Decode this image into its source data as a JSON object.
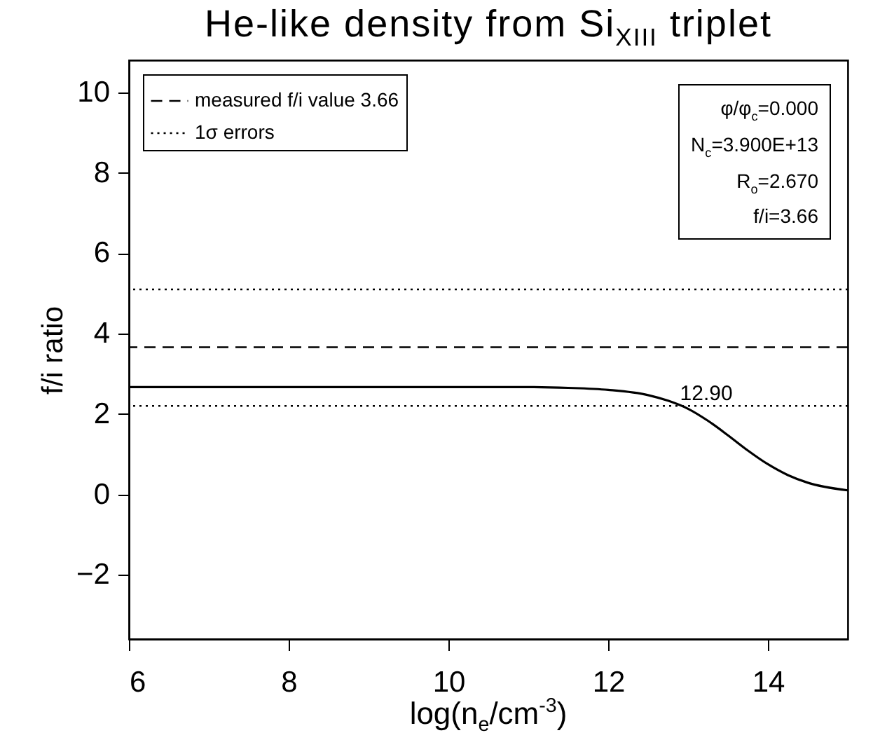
{
  "chart_data": {
    "type": "line",
    "title": "He-like density from Si$_{XIII}$ triplet",
    "xlabel": "log(n$_{e}$/cm$^{-3}$)",
    "ylabel": "f/i ratio",
    "x": [
      6,
      7,
      8,
      9,
      10,
      11,
      11.5,
      12,
      12.5,
      12.75,
      13,
      13.25,
      13.5,
      13.75,
      14,
      14.25,
      14.5,
      15
    ],
    "series": [
      {
        "color": "#000000",
        "values": [
          2.67,
          2.67,
          2.67,
          2.67,
          2.67,
          2.67,
          2.65,
          2.6,
          2.47,
          2.33,
          2.13,
          1.83,
          1.47,
          1.09,
          0.75,
          0.48,
          0.29,
          0.1
        ]
      }
    ],
    "xlim": [
      6,
      15
    ],
    "xticks": [
      6,
      8,
      10,
      12,
      14
    ],
    "ylim": [
      -3.6,
      10.8
    ],
    "yticks": [
      -2,
      0,
      2,
      4,
      6,
      8,
      10
    ],
    "ref_lines": [
      {
        "axis": "y",
        "value": 3.66,
        "label": "measured f/i value 3.66",
        "line_style": "dashed"
      },
      {
        "axis": "y",
        "value": 5.1,
        "label": "1σ errors",
        "line_style": "dotted"
      },
      {
        "axis": "y",
        "value": 2.2,
        "line_style": "dotted"
      }
    ],
    "annotations": [
      {
        "text": "12.90",
        "x": 12.9,
        "y": 2.2
      },
      "φ/φ$_{c}$=0.000",
      "N$_{c}$=3.900E+13",
      "R$_{o}$=2.670",
      "f/i=3.66"
    ],
    "legend": "top left",
    "grid": false,
    "line_style": "solid",
    "marker": "none"
  }
}
